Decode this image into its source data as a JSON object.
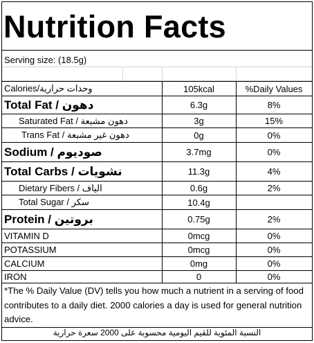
{
  "title": "Nutrition Facts",
  "serving_size": "Serving size:  (18.5g)",
  "header": {
    "col1": "Calories/وحدات حرارية",
    "col2": "105kcal",
    "col3": "%Daily Values"
  },
  "rows": [
    {
      "label": "Total Fat / دهون",
      "amount": "6.3g",
      "dv": "8%"
    },
    {
      "label": "Saturated Fat / دهون مشبعة",
      "amount": "3g",
      "dv": "15%"
    },
    {
      "label": "Trans Fat / دهون غير مشبعة",
      "amount": "0g",
      "dv": "0%"
    },
    {
      "label": "Sodium / صوديوم",
      "amount": "3.7mg",
      "dv": "0%"
    },
    {
      "label": "Total Carbs / نشويات",
      "amount": "11.3g",
      "dv": "4%"
    },
    {
      "label": "Dietary Fibers / الياف",
      "amount": "0.6g",
      "dv": "2%"
    },
    {
      "label": "Total Sugar / سكر",
      "amount": "10.4g",
      "dv": ""
    },
    {
      "label": "Protein / بروتين",
      "amount": "0.75g",
      "dv": "2%"
    },
    {
      "label": "VITAMIN D",
      "amount": "0mcg",
      "dv": "0%"
    },
    {
      "label": "POTASSIUM",
      "amount": "0mcg",
      "dv": "0%"
    },
    {
      "label": "CALCIUM",
      "amount": "0mg",
      "dv": "0%"
    },
    {
      "label": "IRON",
      "amount": "0",
      "dv": "0%"
    }
  ],
  "footer_en": "*The % Daily Value (DV) tells you how much a nutrient in a serving of food contributes to a daily diet. 2000 calories a day is used for general nutrition advice.",
  "footer_ar": "النسبة المئوية للقيم اليومية محسوبة على 2000 سعرة حرارية"
}
